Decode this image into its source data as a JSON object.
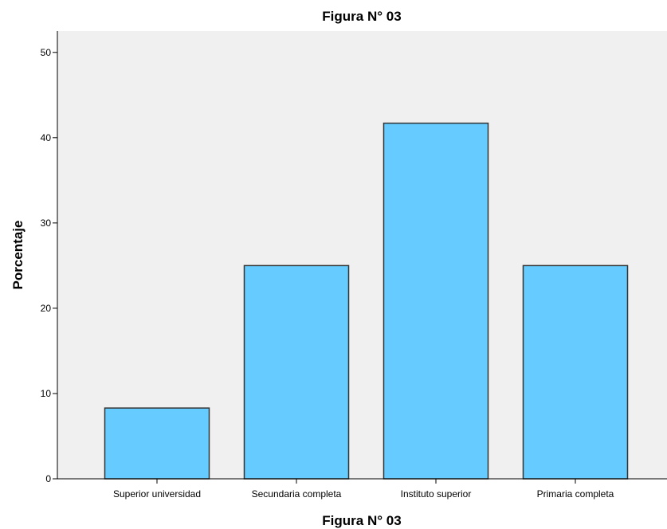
{
  "chart_data": {
    "type": "bar",
    "title": "Figura N° 03",
    "xlabel": "Figura N° 03",
    "ylabel": "Porcentaje",
    "categories": [
      "Superior universidad",
      "Secundaria completa",
      "Instituto superior",
      "Primaria completa"
    ],
    "values": [
      8.3,
      25.0,
      41.7,
      25.0
    ],
    "ylim": [
      0,
      52.5
    ],
    "yticks": [
      0,
      10,
      20,
      30,
      40,
      50
    ],
    "grid": false,
    "legend": "none"
  },
  "colors": {
    "plot_background": "#F0F0F0",
    "bar_fill": "#66CCFF",
    "bar_stroke": "#333333",
    "axis": "#000000"
  }
}
